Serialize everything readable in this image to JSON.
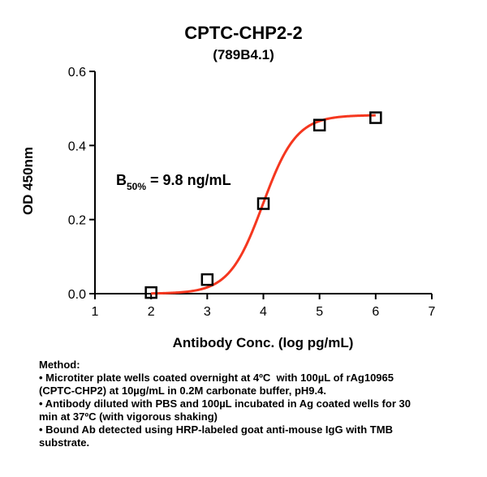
{
  "chart_data": {
    "type": "scatter",
    "title": "CPTC-CHP2-2",
    "subtitle": "(789B4.1)",
    "xlabel": "Antibody Conc. (log pg/mL)",
    "ylabel": "OD 450nm",
    "xlim": [
      1,
      7
    ],
    "ylim": [
      0.0,
      0.6
    ],
    "x_ticks": [
      "1",
      "2",
      "3",
      "4",
      "5",
      "6",
      "7"
    ],
    "y_ticks": [
      "0.0",
      "0.2",
      "0.4",
      "0.6"
    ],
    "points": [
      {
        "x": 2,
        "y": 0.003
      },
      {
        "x": 3,
        "y": 0.038
      },
      {
        "x": 4,
        "y": 0.243
      },
      {
        "x": 5,
        "y": 0.455
      },
      {
        "x": 6,
        "y": 0.475
      }
    ],
    "fit": {
      "model": "4-parameter logistic",
      "bottom": 0.0,
      "top": 0.482,
      "log_ec50": 3.99,
      "hill": 1.45,
      "color": "#f5371f"
    },
    "annotation": {
      "main": "B",
      "sub": "50%",
      "rest": " = 9.8 ng/mL"
    },
    "marker_color": "#000000",
    "grid": false
  },
  "method": {
    "heading": "Method:",
    "lines": [
      "• Microtiter plate wells coated overnight at 4ºC  with 100µL of rAg10965",
      "(CPTC-CHP2) at 10µg/mL in 0.2M carbonate buffer, pH9.4.",
      "• Antibody diluted with PBS and 100µL incubated in Ag coated wells for 30",
      "min at 37ºC (with vigorous shaking)",
      "• Bound Ab detected using HRP-labeled goat anti-mouse IgG with TMB",
      "substrate."
    ]
  }
}
